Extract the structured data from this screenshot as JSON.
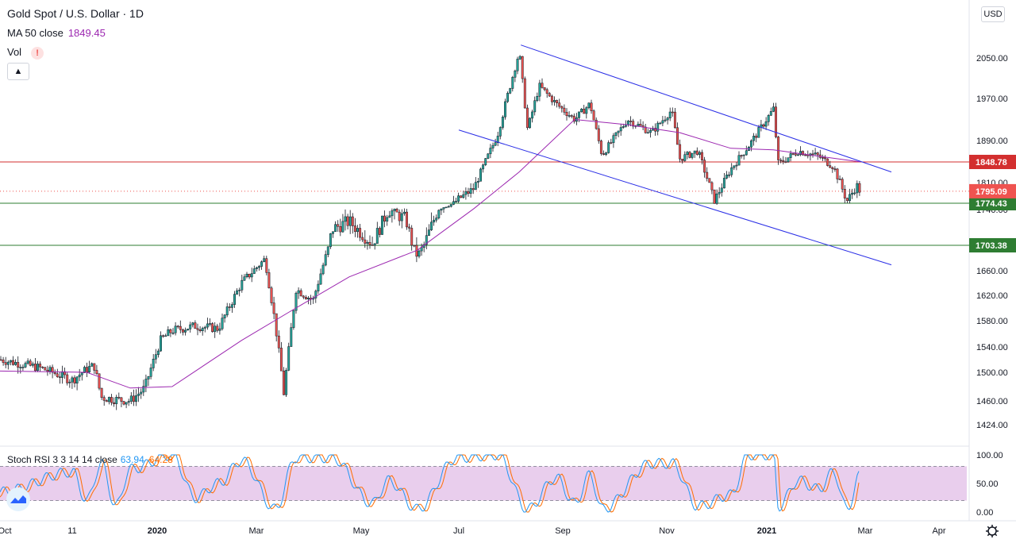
{
  "header": {
    "symbol_title": "Gold Spot / U.S. Dollar · 1D",
    "ma_label": "MA 50 close",
    "ma_value": "1849.45",
    "vol_label": "Vol",
    "vol_alert": "!",
    "collapse_icon": "chevron-up-icon"
  },
  "currency": "USD",
  "stoch": {
    "label": "Stoch RSI 3 3 14 14 close",
    "k_value": "63.94",
    "d_value": "64.28"
  },
  "colors": {
    "up": "#26a69a",
    "down": "#ef5350",
    "candle_body_up": "#26a69a",
    "ma": "#9c27b0",
    "channel": "#2a2ee6",
    "resistance": "#d32f2f",
    "support": "#2e7d32",
    "stoch_k": "#2196f3",
    "stoch_d": "#ff6d00",
    "stoch_band": "#e1bee7"
  },
  "chart_data": {
    "type": "candlestick",
    "title": "Gold Spot / U.S. Dollar · 1D",
    "price_axis_ticks": [
      "2050.00",
      "1970.00",
      "1890.00",
      "1810.00",
      "1740.00",
      "1660.00",
      "1620.00",
      "1580.00",
      "1540.00",
      "1500.00",
      "1460.00",
      "1424.00"
    ],
    "time_axis_ticks": [
      "Oct",
      "11",
      "2020",
      "Mar",
      "May",
      "Jul",
      "Sep",
      "Nov",
      "2021",
      "Mar",
      "Apr"
    ],
    "price_range": [
      1400,
      2120
    ],
    "horizontal_levels": [
      {
        "price": 1848.78,
        "label": "1848.78",
        "color": "resistance"
      },
      {
        "price": 1774.43,
        "label": "1774.43",
        "color": "support"
      },
      {
        "price": 1703.38,
        "label": "1703.38",
        "color": "support"
      }
    ],
    "current_price": {
      "price": 1795.09,
      "label": "1795.09"
    },
    "channel": {
      "upper": {
        "from": [
          "2020-08-07",
          2070
        ],
        "to": [
          "2021-03-12",
          1830
        ]
      },
      "lower": {
        "from": [
          "2020-07-01",
          1910
        ],
        "to": [
          "2021-03-12",
          1670
        ]
      }
    },
    "close_path": [
      [
        "2019-09-23",
        1520
      ],
      [
        "2019-10-03",
        1507
      ],
      [
        "2019-10-11",
        1489
      ],
      [
        "2019-10-25",
        1505
      ],
      [
        "2019-11-01",
        1511
      ],
      [
        "2019-11-08",
        1465
      ],
      [
        "2019-11-22",
        1462
      ],
      [
        "2019-12-06",
        1460
      ],
      [
        "2019-12-20",
        1478
      ],
      [
        "2020-01-03",
        1550
      ],
      [
        "2020-01-10",
        1565
      ],
      [
        "2020-01-24",
        1572
      ],
      [
        "2020-02-07",
        1568
      ],
      [
        "2020-02-21",
        1640
      ],
      [
        "2020-03-06",
        1680
      ],
      [
        "2020-03-12",
        1575
      ],
      [
        "2020-03-17",
        1470
      ],
      [
        "2020-03-24",
        1630
      ],
      [
        "2020-04-03",
        1612
      ],
      [
        "2020-04-14",
        1720
      ],
      [
        "2020-04-24",
        1728
      ],
      [
        "2020-05-08",
        1705
      ],
      [
        "2020-05-18",
        1740
      ],
      [
        "2020-05-29",
        1730
      ],
      [
        "2020-06-05",
        1685
      ],
      [
        "2020-06-19",
        1745
      ],
      [
        "2020-06-30",
        1780
      ],
      [
        "2020-07-10",
        1800
      ],
      [
        "2020-07-24",
        1900
      ],
      [
        "2020-08-06",
        2062
      ],
      [
        "2020-08-11",
        1910
      ],
      [
        "2020-08-18",
        1995
      ],
      [
        "2020-08-28",
        1960
      ],
      [
        "2020-09-08",
        1930
      ],
      [
        "2020-09-17",
        1960
      ],
      [
        "2020-09-24",
        1862
      ],
      [
        "2020-10-09",
        1930
      ],
      [
        "2020-10-23",
        1905
      ],
      [
        "2020-11-04",
        1948
      ],
      [
        "2020-11-09",
        1855
      ],
      [
        "2020-11-20",
        1870
      ],
      [
        "2020-11-30",
        1778
      ],
      [
        "2020-12-10",
        1835
      ],
      [
        "2020-12-21",
        1880
      ],
      [
        "2021-01-05",
        1950
      ],
      [
        "2021-01-08",
        1845
      ],
      [
        "2021-01-20",
        1870
      ],
      [
        "2021-02-01",
        1860
      ],
      [
        "2021-02-10",
        1840
      ],
      [
        "2021-02-18",
        1778
      ],
      [
        "2021-02-24",
        1805
      ],
      [
        "2021-02-26",
        1795
      ]
    ],
    "ma50_path": [
      [
        "2019-09-23",
        1502
      ],
      [
        "2019-10-25",
        1500
      ],
      [
        "2019-12-06",
        1478
      ],
      [
        "2020-01-10",
        1480
      ],
      [
        "2020-02-21",
        1550
      ],
      [
        "2020-03-24",
        1600
      ],
      [
        "2020-04-24",
        1650
      ],
      [
        "2020-06-05",
        1695
      ],
      [
        "2020-07-10",
        1745
      ],
      [
        "2020-08-06",
        1830
      ],
      [
        "2020-09-08",
        1930
      ],
      [
        "2020-10-09",
        1920
      ],
      [
        "2020-11-09",
        1905
      ],
      [
        "2020-12-10",
        1875
      ],
      [
        "2021-01-05",
        1872
      ],
      [
        "2021-02-01",
        1860
      ],
      [
        "2021-02-26",
        1849
      ]
    ],
    "stoch_rsi": {
      "k": [
        [
          "2019-09-23",
          35
        ],
        [
          "2019-10-11",
          70
        ],
        [
          "2019-10-25",
          20
        ],
        [
          "2019-11-08",
          85
        ],
        [
          "2019-11-22",
          10
        ],
        [
          "2019-12-06",
          75
        ],
        [
          "2020-01-10",
          100
        ],
        [
          "2020-01-24",
          25
        ],
        [
          "2020-02-07",
          50
        ],
        [
          "2020-02-21",
          90
        ],
        [
          "2020-03-12",
          5
        ],
        [
          "2020-03-24",
          95
        ],
        [
          "2020-04-14",
          95
        ],
        [
          "2020-05-08",
          15
        ],
        [
          "2020-05-18",
          55
        ],
        [
          "2020-06-05",
          5
        ],
        [
          "2020-06-30",
          95
        ],
        [
          "2020-07-24",
          100
        ],
        [
          "2020-08-11",
          5
        ],
        [
          "2020-08-28",
          60
        ],
        [
          "2020-09-08",
          15
        ],
        [
          "2020-09-17",
          65
        ],
        [
          "2020-09-24",
          5
        ],
        [
          "2020-10-23",
          85
        ],
        [
          "2020-11-04",
          85
        ],
        [
          "2020-11-20",
          10
        ],
        [
          "2020-12-10",
          30
        ],
        [
          "2020-12-21",
          100
        ],
        [
          "2021-01-05",
          100
        ],
        [
          "2021-01-08",
          10
        ],
        [
          "2021-01-20",
          55
        ],
        [
          "2021-02-01",
          40
        ],
        [
          "2021-02-10",
          70
        ],
        [
          "2021-02-18",
          5
        ],
        [
          "2021-02-26",
          64
        ]
      ],
      "ticks": [
        "100.00",
        "50.00",
        "0.00"
      ],
      "bands": [
        20,
        80
      ]
    }
  }
}
